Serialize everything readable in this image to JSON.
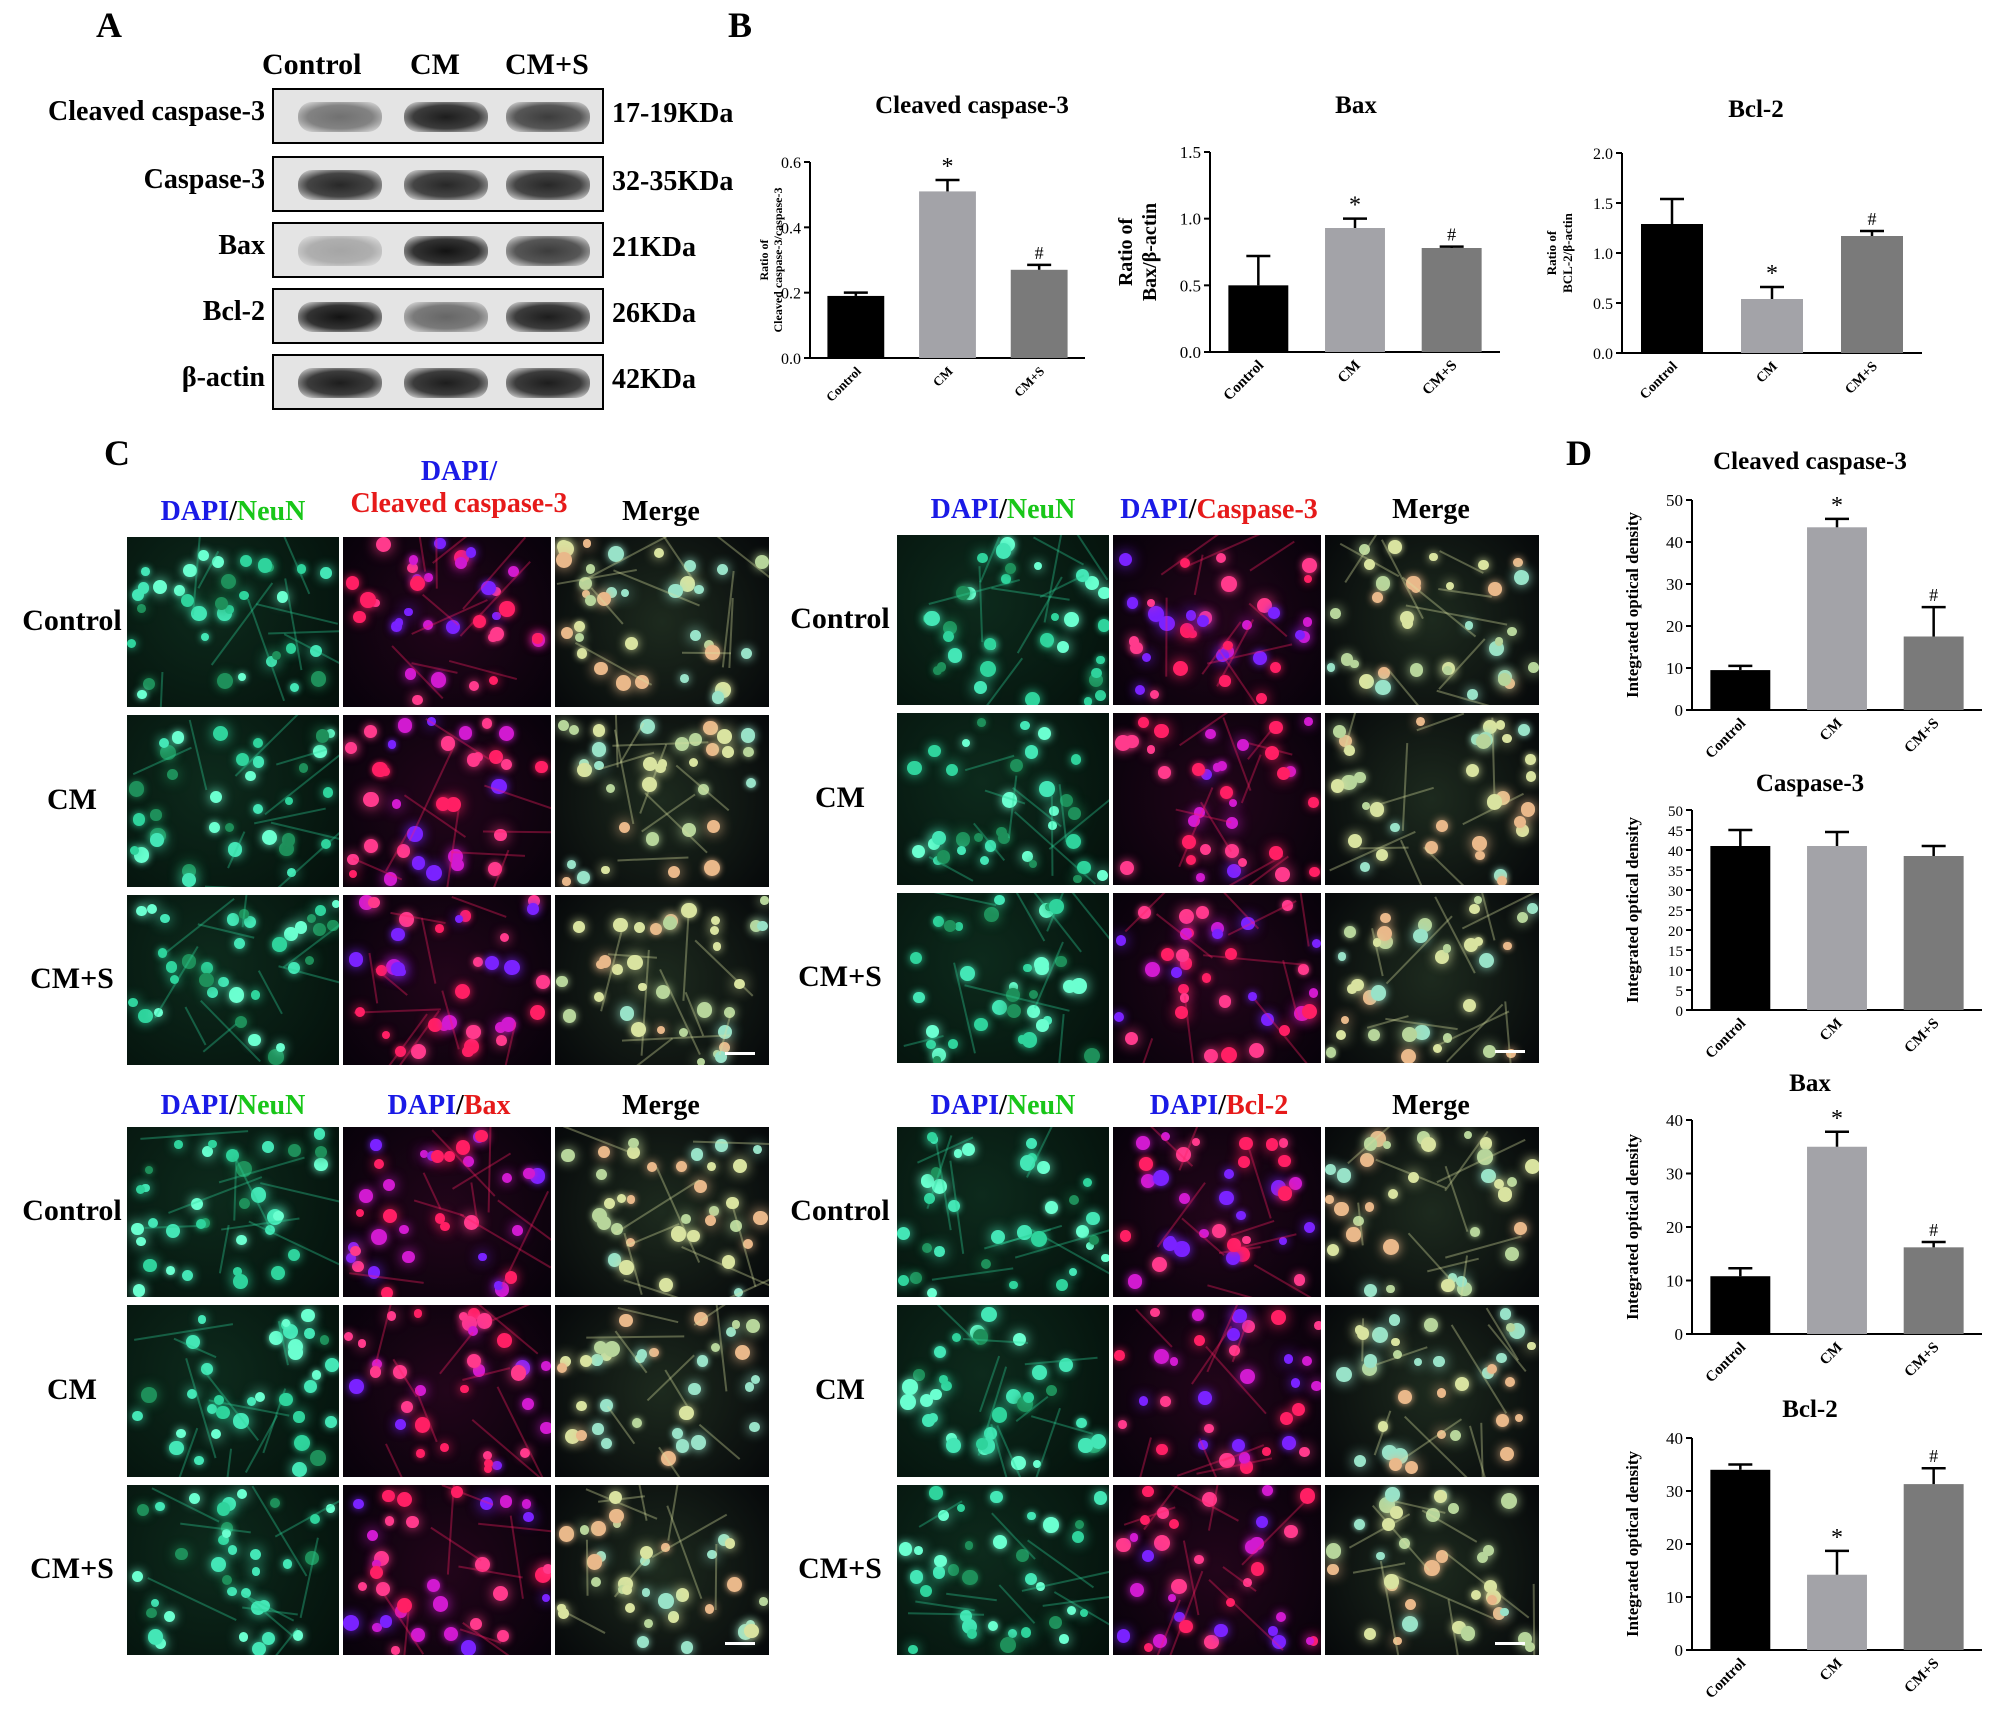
{
  "panels": {
    "a": {
      "letter": "A",
      "lanes": [
        "Control",
        "CM",
        "CM+S"
      ],
      "rows": [
        {
          "protein": "Cleaved caspase-3",
          "size": "17-19KDa",
          "intensity": [
            0.55,
            0.95,
            0.8
          ]
        },
        {
          "protein": "Caspase-3",
          "size": "32-35KDa",
          "intensity": [
            0.9,
            0.9,
            0.9
          ]
        },
        {
          "protein": "Bax",
          "size": "21KDa",
          "intensity": [
            0.3,
            1.0,
            0.8
          ]
        },
        {
          "protein": "Bcl-2",
          "size": "26KDa",
          "intensity": [
            1.0,
            0.6,
            0.95
          ]
        },
        {
          "protein": "β-actin",
          "size": "42KDa",
          "intensity": [
            0.95,
            0.95,
            0.95
          ]
        }
      ]
    },
    "b": {
      "letter": "B"
    },
    "c": {
      "letter": "C",
      "blocks": [
        {
          "columns": [
            [
              {
                "t": "DAPI",
                "c": "blue"
              },
              {
                "t": "/",
                "c": ""
              },
              {
                "t": "NeuN",
                "c": "green"
              }
            ],
            [
              {
                "t": "DAPI/",
                "c": "blue-top"
              },
              {
                "t": "Cleaved caspase-3",
                "c": "red"
              }
            ],
            [
              {
                "t": "Merge",
                "c": ""
              }
            ]
          ]
        },
        {
          "columns": [
            [
              {
                "t": "DAPI",
                "c": "blue"
              },
              {
                "t": "/",
                "c": ""
              },
              {
                "t": "NeuN",
                "c": "green"
              }
            ],
            [
              {
                "t": "DAPI",
                "c": "blue"
              },
              {
                "t": "/",
                "c": ""
              },
              {
                "t": "Caspase-3",
                "c": "red"
              }
            ],
            [
              {
                "t": "Merge",
                "c": ""
              }
            ]
          ]
        },
        {
          "columns": [
            [
              {
                "t": "DAPI",
                "c": "blue"
              },
              {
                "t": "/",
                "c": ""
              },
              {
                "t": "NeuN",
                "c": "green"
              }
            ],
            [
              {
                "t": "DAPI",
                "c": "blue"
              },
              {
                "t": "/",
                "c": ""
              },
              {
                "t": "Bax",
                "c": "red"
              }
            ],
            [
              {
                "t": "Merge",
                "c": ""
              }
            ]
          ]
        },
        {
          "columns": [
            [
              {
                "t": "DAPI",
                "c": "blue"
              },
              {
                "t": "/",
                "c": ""
              },
              {
                "t": "NeuN",
                "c": "green"
              }
            ],
            [
              {
                "t": "DAPI",
                "c": "blue"
              },
              {
                "t": "/",
                "c": ""
              },
              {
                "t": "Bcl-2",
                "c": "red"
              }
            ],
            [
              {
                "t": "Merge",
                "c": ""
              }
            ]
          ]
        }
      ],
      "row_labels": [
        "Control",
        "CM",
        "CM+S"
      ]
    },
    "d": {
      "letter": "D"
    }
  },
  "colors": {
    "control": "#000000",
    "cm": "#a3a3a8",
    "cms": "#7a7a7a",
    "error": "#000000"
  },
  "chart_data": [
    {
      "id": "b1",
      "type": "bar",
      "title": "Cleaved caspase-3",
      "ylabel": [
        "Ratio of",
        "Cleaved caspase-3/caspase-3"
      ],
      "categories": [
        "Control",
        "CM",
        "CM+S"
      ],
      "values": [
        0.19,
        0.51,
        0.27
      ],
      "errors": [
        0.01,
        0.035,
        0.015
      ],
      "marks": [
        "",
        "*",
        "#"
      ],
      "ylim": [
        0,
        0.6
      ],
      "yticks": [
        "0.0",
        "0.2",
        "0.4",
        "0.6"
      ]
    },
    {
      "id": "b2",
      "type": "bar",
      "title": "Bax",
      "ylabel": [
        "Ratio of",
        "Bax/β-actin"
      ],
      "categories": [
        "Control",
        "CM",
        "CM+S"
      ],
      "values": [
        0.5,
        0.93,
        0.78
      ],
      "errors": [
        0.22,
        0.07,
        0.01
      ],
      "marks": [
        "",
        "*",
        "#"
      ],
      "ylim": [
        0,
        1.5
      ],
      "yticks": [
        "0.0",
        "0.5",
        "1.0",
        "1.5"
      ]
    },
    {
      "id": "b3",
      "type": "bar",
      "title": "Bcl-2",
      "ylabel": [
        "Ratio of",
        "BCL-2/β-actin"
      ],
      "categories": [
        "Control",
        "CM",
        "CM+S"
      ],
      "values": [
        1.29,
        0.54,
        1.17
      ],
      "errors": [
        0.25,
        0.12,
        0.05
      ],
      "marks": [
        "",
        "*",
        "#"
      ],
      "ylim": [
        0,
        2.0
      ],
      "yticks": [
        "0.0",
        "0.5",
        "1.0",
        "1.5",
        "2.0"
      ]
    },
    {
      "id": "d1",
      "type": "bar",
      "title": "Cleaved caspase-3",
      "ylabel": [
        "Integrated optical density"
      ],
      "categories": [
        "Control",
        "CM",
        "CM+S"
      ],
      "values": [
        9.5,
        43.5,
        17.5
      ],
      "errors": [
        1.0,
        2.0,
        7.0
      ],
      "marks": [
        "",
        "*",
        "#"
      ],
      "ylim": [
        0,
        50
      ],
      "yticks": [
        "0",
        "10",
        "20",
        "30",
        "40",
        "50"
      ]
    },
    {
      "id": "d2",
      "type": "bar",
      "title": "Caspase-3",
      "ylabel": [
        "Integrated optical density"
      ],
      "categories": [
        "Control",
        "CM",
        "CM+S"
      ],
      "values": [
        41,
        41,
        38.5
      ],
      "errors": [
        4,
        3.5,
        2.5
      ],
      "marks": [
        "",
        "",
        ""
      ],
      "ylim": [
        0,
        50
      ],
      "yticks": [
        "0",
        "5",
        "10",
        "15",
        "20",
        "25",
        "30",
        "35",
        "40",
        "45",
        "50"
      ]
    },
    {
      "id": "d3",
      "type": "bar",
      "title": "Bax",
      "ylabel": [
        "Integrated optical density"
      ],
      "categories": [
        "Control",
        "CM",
        "CM+S"
      ],
      "values": [
        10.8,
        35,
        16.2
      ],
      "errors": [
        1.5,
        2.8,
        1.0
      ],
      "marks": [
        "",
        "*",
        "#"
      ],
      "ylim": [
        0,
        40
      ],
      "yticks": [
        "0",
        "10",
        "20",
        "30",
        "40"
      ]
    },
    {
      "id": "d4",
      "type": "bar",
      "title": "Bcl-2",
      "ylabel": [
        "Integrated optical density"
      ],
      "categories": [
        "Control",
        "CM",
        "CM+S"
      ],
      "values": [
        34,
        14.2,
        31.3
      ],
      "errors": [
        1.0,
        4.5,
        3.0
      ],
      "marks": [
        "",
        "*",
        "#"
      ],
      "ylim": [
        0,
        40
      ],
      "yticks": [
        "0",
        "10",
        "20",
        "30",
        "40"
      ]
    }
  ]
}
